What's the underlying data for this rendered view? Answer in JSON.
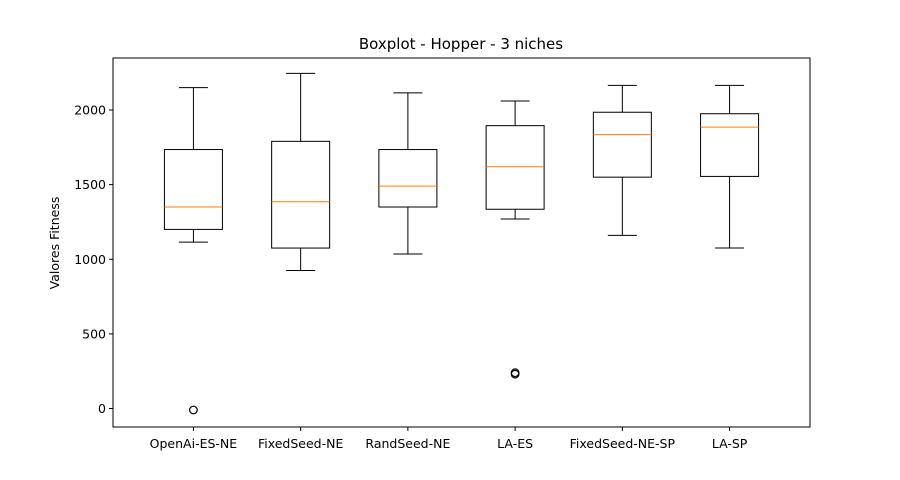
{
  "chart_data": {
    "type": "boxplot",
    "title": "Boxplot - Hopper - 3 niches",
    "xlabel": "",
    "ylabel": "Valores Fitness",
    "ylim": [
      -130,
      2360
    ],
    "yticks": [
      0,
      500,
      1000,
      1500,
      2000
    ],
    "grid": false,
    "colors": {
      "box": "#000000",
      "median": "#ff7f0e",
      "flier": "#000000"
    },
    "categories": [
      "OpenAi-ES-NE",
      "FixedSeed-NE",
      "RandSeed-NE",
      "LA-ES",
      "FixedSeed-NE-SP",
      "LA-SP"
    ],
    "boxes": [
      {
        "label": "OpenAi-ES-NE",
        "whisker_low": 1115,
        "q1": 1200,
        "median": 1350,
        "q3": 1735,
        "whisker_high": 2150,
        "fliers": [
          -10
        ]
      },
      {
        "label": "FixedSeed-NE",
        "whisker_low": 925,
        "q1": 1075,
        "median": 1385,
        "q3": 1790,
        "whisker_high": 2245,
        "fliers": []
      },
      {
        "label": "RandSeed-NE",
        "whisker_low": 1035,
        "q1": 1350,
        "median": 1490,
        "q3": 1735,
        "whisker_high": 2115,
        "fliers": []
      },
      {
        "label": "LA-ES",
        "whisker_low": 1270,
        "q1": 1335,
        "median": 1620,
        "q3": 1895,
        "whisker_high": 2060,
        "fliers": [
          230,
          240
        ]
      },
      {
        "label": "FixedSeed-NE-SP",
        "whisker_low": 1160,
        "q1": 1550,
        "median": 1835,
        "q3": 1985,
        "whisker_high": 2165,
        "fliers": []
      },
      {
        "label": "LA-SP",
        "whisker_low": 1075,
        "q1": 1555,
        "median": 1885,
        "q3": 1975,
        "whisker_high": 2165,
        "fliers": []
      }
    ]
  }
}
